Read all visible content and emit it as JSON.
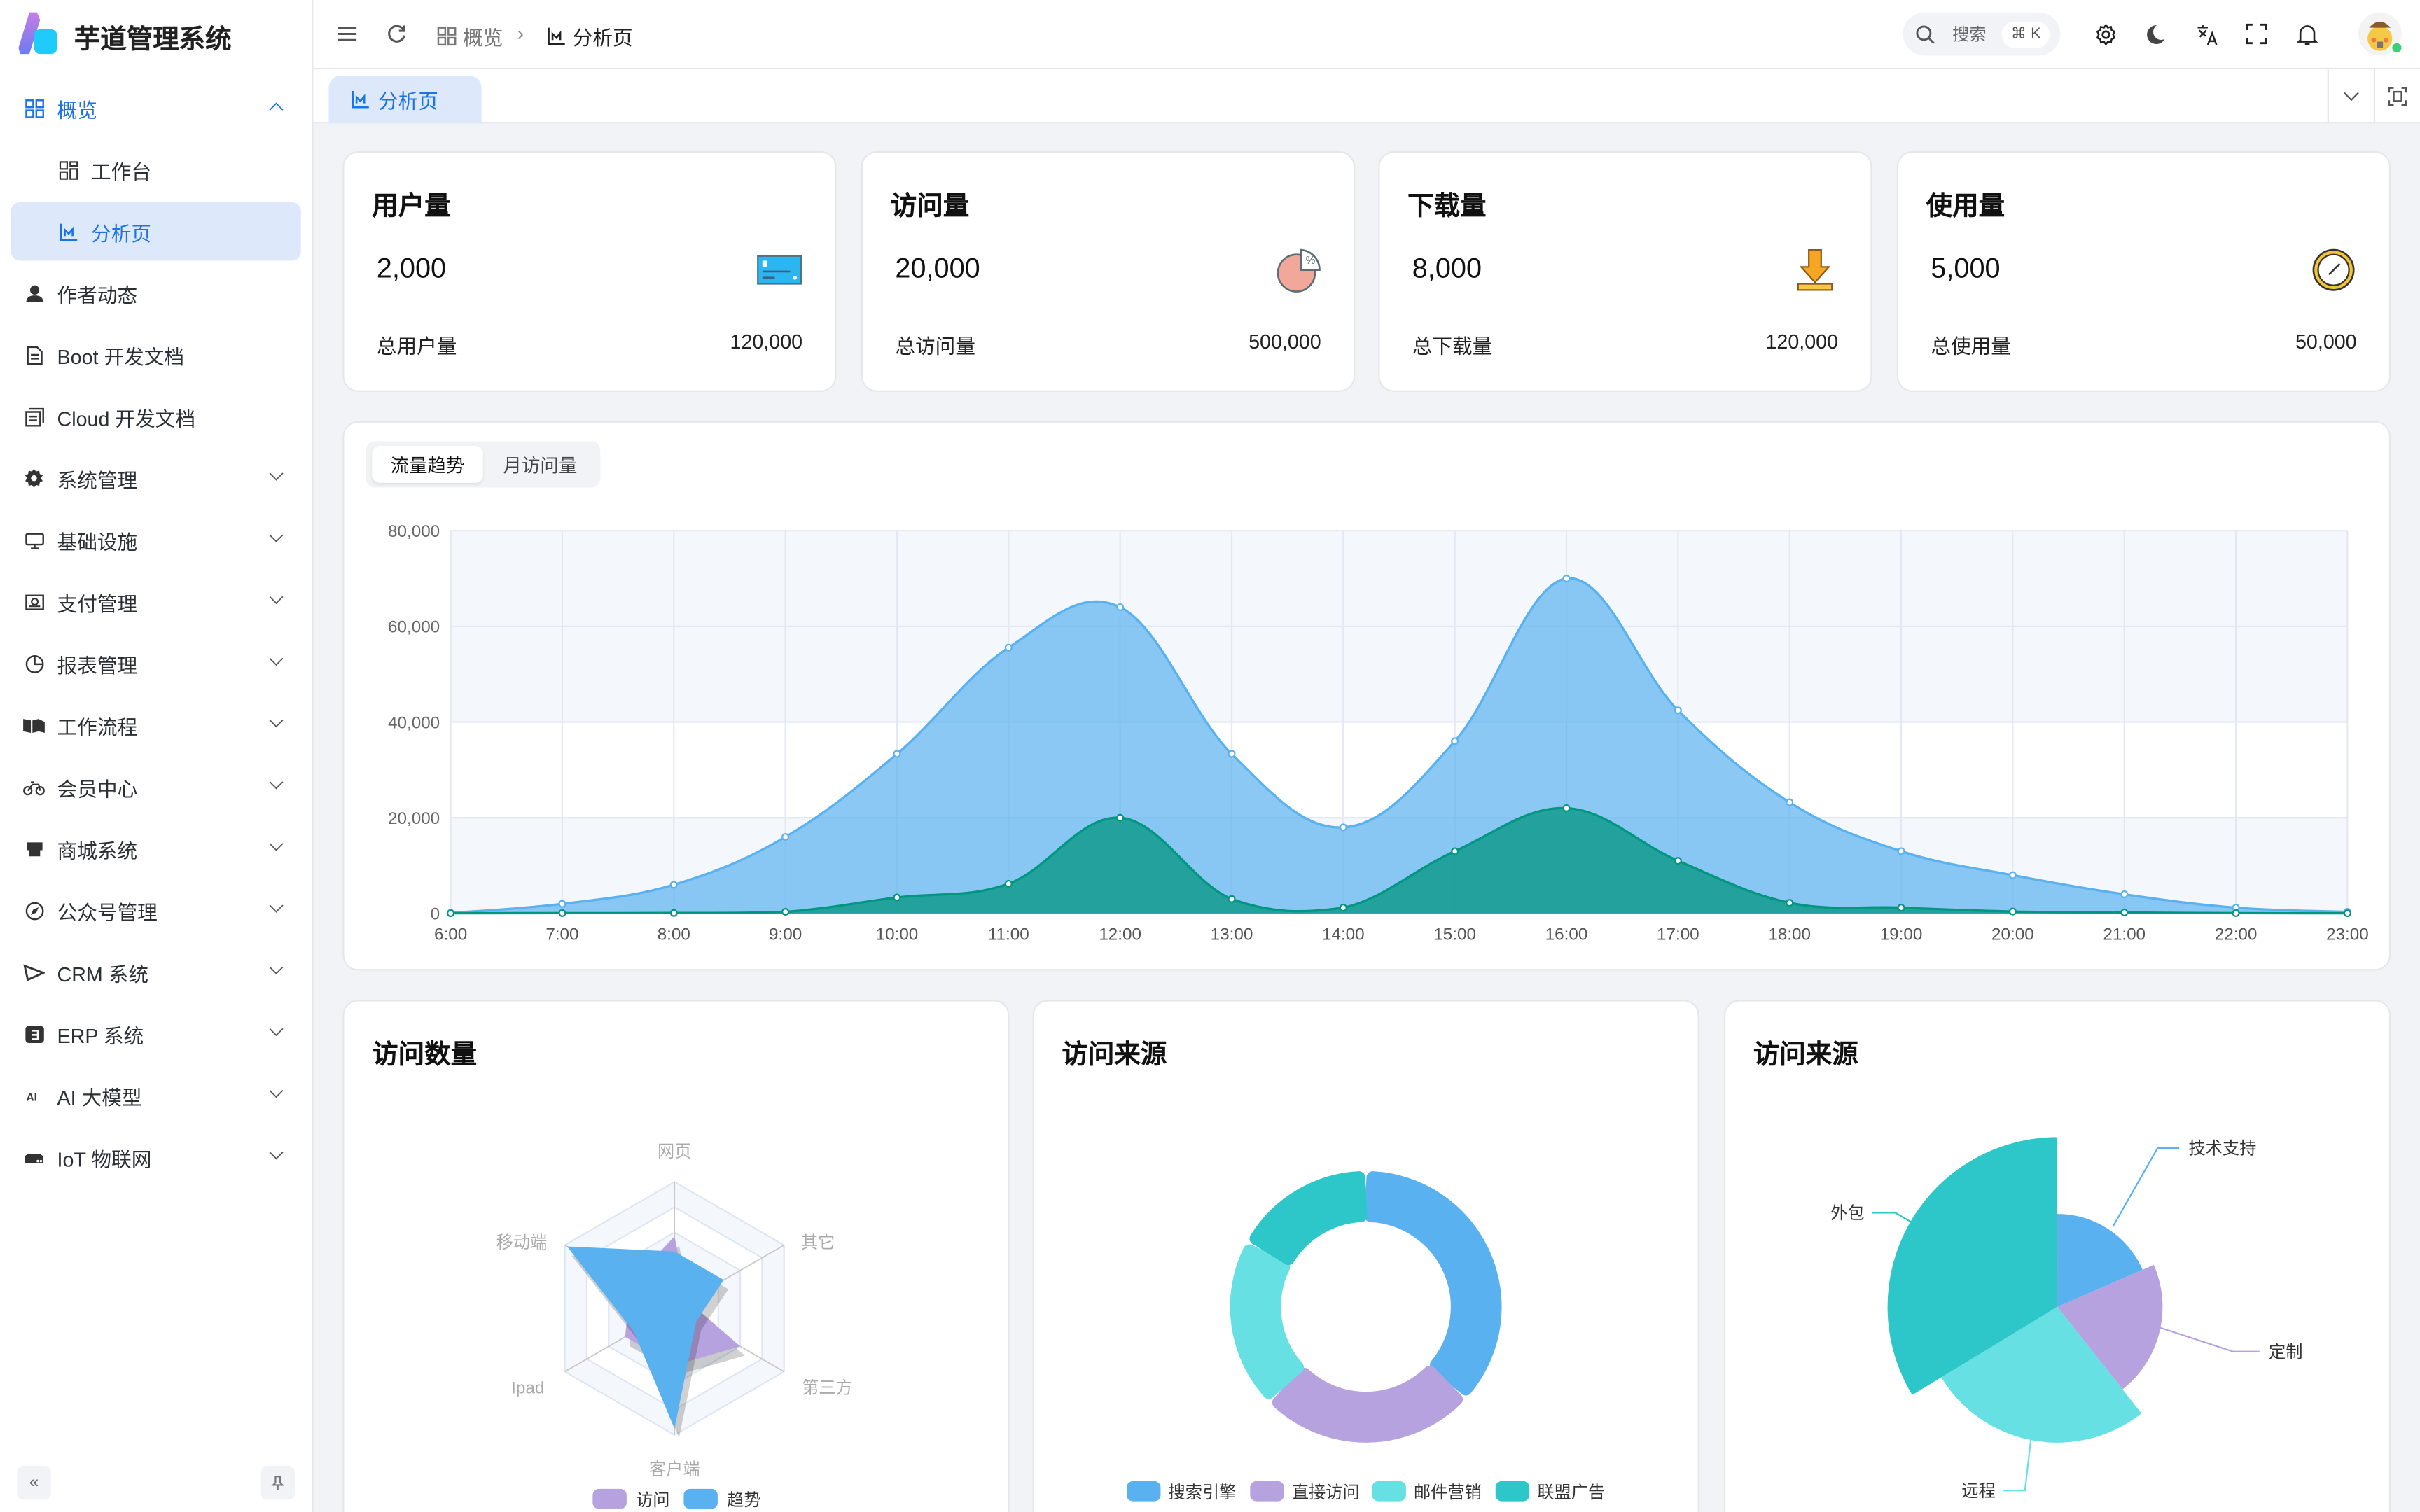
{
  "app": {
    "title": "芋道管理系统"
  },
  "sidebar": {
    "items": [
      {
        "label": "概览",
        "icon": "dashboard-icon",
        "expanded": true
      },
      {
        "label": "工作台",
        "icon": "workspace-icon",
        "sub": true
      },
      {
        "label": "分析页",
        "icon": "chart-icon",
        "sub": true,
        "active": true
      },
      {
        "label": "作者动态",
        "icon": "user-icon"
      },
      {
        "label": "Boot 开发文档",
        "icon": "document-icon"
      },
      {
        "label": "Cloud 开发文档",
        "icon": "documents-icon"
      },
      {
        "label": "系统管理",
        "icon": "gear-icon",
        "expandable": true
      },
      {
        "label": "基础设施",
        "icon": "monitor-icon",
        "expandable": true
      },
      {
        "label": "支付管理",
        "icon": "payment-icon",
        "expandable": true
      },
      {
        "label": "报表管理",
        "icon": "pie-chart-icon",
        "expandable": true
      },
      {
        "label": "工作流程",
        "icon": "workflow-icon",
        "expandable": true
      },
      {
        "label": "会员中心",
        "icon": "bicycle-icon",
        "expandable": true
      },
      {
        "label": "商城系统",
        "icon": "shop-icon",
        "expandable": true
      },
      {
        "label": "公众号管理",
        "icon": "compass-icon",
        "expandable": true
      },
      {
        "label": "CRM 系统",
        "icon": "crm-icon",
        "expandable": true
      },
      {
        "label": "ERP 系统",
        "icon": "erp-icon",
        "expandable": true
      },
      {
        "label": "AI 大模型",
        "icon": "ai-icon",
        "expandable": true
      },
      {
        "label": "IoT 物联网",
        "icon": "iot-icon",
        "expandable": true
      }
    ]
  },
  "header": {
    "breadcrumb": [
      "概览",
      "分析页"
    ],
    "search_placeholder": "搜索",
    "search_shortcut": "⌘ K"
  },
  "tabs": [
    {
      "label": "分析页",
      "active": true
    }
  ],
  "stats": [
    {
      "title": "用户量",
      "value": "2,000",
      "footer": "总用户量",
      "total": "120,000",
      "icon": "credit-card-icon"
    },
    {
      "title": "访问量",
      "value": "20,000",
      "footer": "总访问量",
      "total": "500,000",
      "icon": "percent-pie-icon"
    },
    {
      "title": "下载量",
      "value": "8,000",
      "footer": "总下载量",
      "total": "120,000",
      "icon": "download-icon"
    },
    {
      "title": "使用量",
      "value": "5,000",
      "footer": "总使用量",
      "total": "50,000",
      "icon": "clock-icon"
    }
  ],
  "trend_tabs": [
    {
      "label": "流量趋势",
      "active": true
    },
    {
      "label": "月访问量"
    }
  ],
  "cards": {
    "radar_title": "访问数量",
    "donut_title": "访问来源",
    "rose_title": "访问来源"
  },
  "colors": {
    "primary": "#1a73e8",
    "blue": "#5ab1ef",
    "green": "#019680",
    "purple": "#b6a2de",
    "cyan": "#67e0e3",
    "teal": "#2ec7c9"
  },
  "chart_data": [
    {
      "type": "area",
      "x": [
        "6:00",
        "7:00",
        "8:00",
        "9:00",
        "10:00",
        "11:00",
        "12:00",
        "13:00",
        "14:00",
        "15:00",
        "16:00",
        "17:00",
        "18:00",
        "19:00",
        "20:00",
        "21:00",
        "22:00",
        "23:00"
      ],
      "ylim": [
        0,
        80000
      ],
      "yticks": [
        "0",
        "20,000",
        "40,000",
        "60,000",
        "80,000"
      ],
      "grid": true,
      "series": [
        {
          "values": [
            111,
            2000,
            6000,
            16000,
            33333,
            55555,
            64000,
            33333,
            18000,
            36000,
            70000,
            42444,
            23222,
            13000,
            8000,
            4000,
            1200,
            333
          ],
          "color": "#5ab1ef"
        },
        {
          "values": [
            33,
            66,
            88,
            333,
            3333,
            6200,
            20000,
            3000,
            1200,
            13000,
            22000,
            11000,
            2221,
            1201,
            390,
            198,
            60,
            30
          ],
          "color": "#019680"
        }
      ]
    },
    {
      "type": "radar",
      "indicators": [
        "网页",
        "其它",
        "第三方",
        "客户端",
        "Ipad",
        "移动端"
      ],
      "max": 100,
      "legend": "bottom",
      "series": [
        {
          "name": "访问",
          "values": [
            57,
            12,
            60,
            45,
            45,
            40
          ],
          "color": "#b6a2de"
        },
        {
          "name": "趋势",
          "values": [
            45,
            45,
            20,
            95,
            37,
            98
          ],
          "color": "#5ab1ef"
        }
      ]
    },
    {
      "type": "pie",
      "variant": "donut",
      "legend": "bottom",
      "slices": [
        {
          "name": "搜索引擎",
          "value": 1048,
          "color": "#5ab1ef"
        },
        {
          "name": "直接访问",
          "value": 735,
          "color": "#b6a2de"
        },
        {
          "name": "邮件营销",
          "value": 580,
          "color": "#67e0e3"
        },
        {
          "name": "联盟广告",
          "value": 484,
          "color": "#2ec7c9"
        }
      ]
    },
    {
      "type": "pie",
      "variant": "rose",
      "slices": [
        {
          "name": "技术支持",
          "value": 274,
          "color": "#5ab1ef"
        },
        {
          "name": "定制",
          "value": 310,
          "color": "#b6a2de"
        },
        {
          "name": "远程",
          "value": 400,
          "color": "#67e0e3"
        },
        {
          "name": "外包",
          "value": 500,
          "color": "#2ec7c9"
        }
      ]
    }
  ]
}
